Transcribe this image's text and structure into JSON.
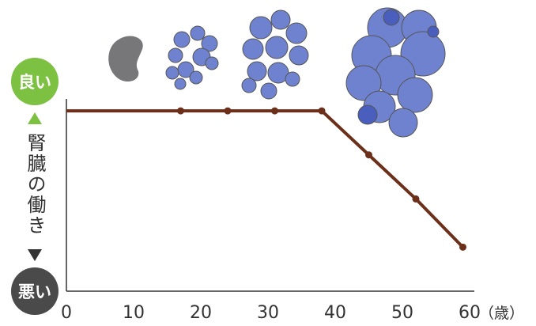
{
  "chart_data": {
    "type": "line",
    "y_label": "腎臓の働き",
    "x_unit": "（歳）",
    "x": [
      0,
      17,
      24,
      31,
      38,
      45,
      52,
      59
    ],
    "series": [
      {
        "color": "#6b2f1a",
        "values": [
          86,
          86,
          86,
          86,
          86,
          65,
          44,
          21
        ]
      }
    ],
    "xlim": [
      0,
      60
    ],
    "xticks": [
      0,
      10,
      20,
      30,
      40,
      50,
      60
    ],
    "ylim": [
      0,
      100
    ],
    "yticks": [
      {
        "value": 100,
        "label": "良い"
      },
      {
        "value": 0,
        "label": "悪い"
      }
    ]
  }
}
